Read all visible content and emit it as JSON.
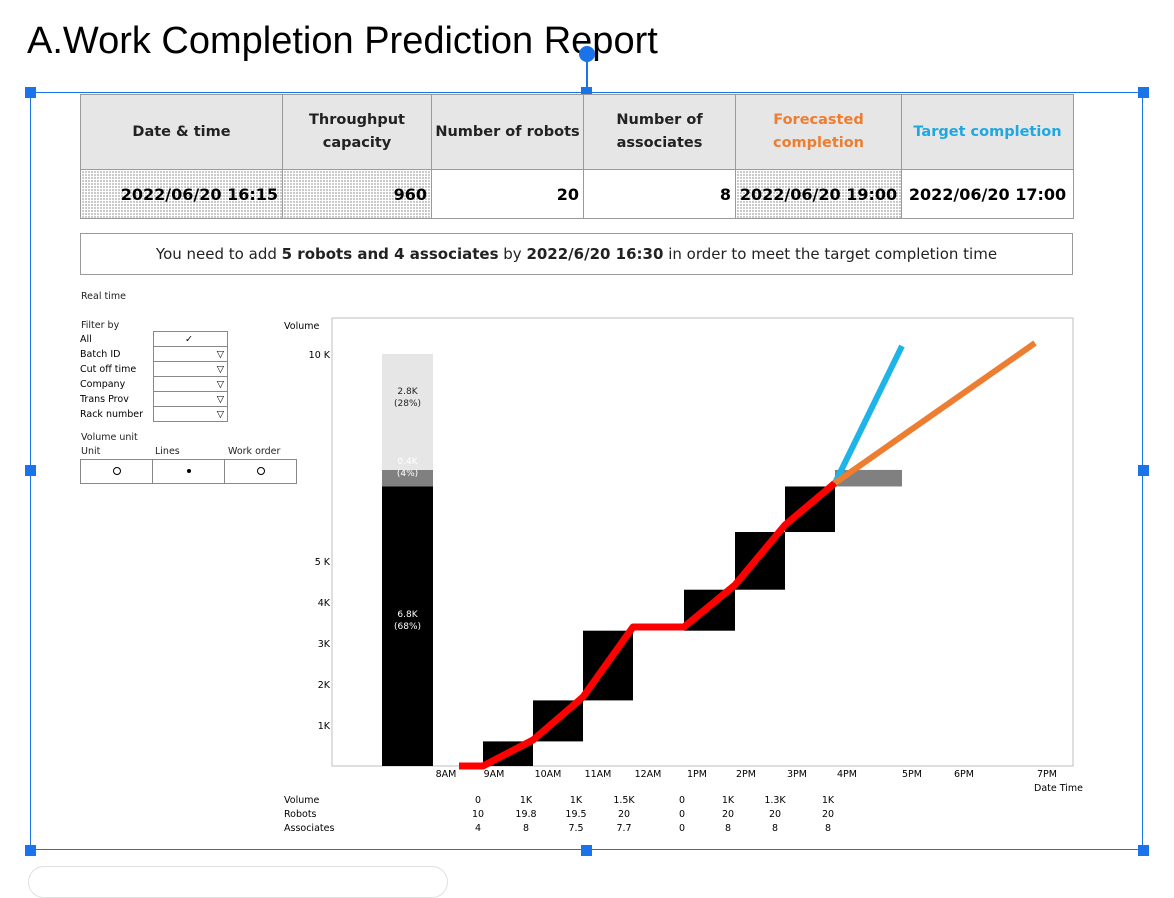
{
  "page": {
    "title": "A.Work Completion Prediction Report"
  },
  "header": {
    "columns": [
      "Date & time",
      "Throughput capacity",
      "Number of robots",
      "Number of associates",
      "Forecasted completion",
      "Target completion"
    ],
    "values": [
      "2022/06/20 16:15",
      "960",
      "20",
      "8",
      "2022/06/20 19:00",
      "2022/06/20 17:00"
    ],
    "colors": {
      "forecasted": "#ed7d31",
      "target": "#1fa8e0"
    }
  },
  "message": {
    "pre": "You need to add ",
    "bold1": "5 robots and 4 associates",
    "mid": " by ",
    "bold2": "2022/6/20 16:30",
    "post": " in order to meet the target completion time"
  },
  "panel": {
    "realtime": "Real time",
    "filter_by": "Filter by",
    "filters": [
      {
        "label": "All",
        "value": "✓"
      },
      {
        "label": "Batch ID",
        "value": "▽"
      },
      {
        "label": "Cut off time",
        "value": "▽"
      },
      {
        "label": "Company",
        "value": "▽"
      },
      {
        "label": "Trans Prov",
        "value": "▽"
      },
      {
        "label": "Rack number",
        "value": "▽"
      }
    ],
    "volume_unit": "Volume unit",
    "units": [
      "Unit",
      "Lines",
      "Work order"
    ],
    "selected_unit": "Lines"
  },
  "chart_data": {
    "type": "bar",
    "ylabel": "Volume",
    "xlabel": "Date Time",
    "y_ticks": [
      "1K",
      "2K",
      "3K",
      "4K",
      "5 K",
      "10 K"
    ],
    "x_ticks": [
      "8AM",
      "9AM",
      "10AM",
      "11AM",
      "12AM",
      "1PM",
      "2PM",
      "3PM",
      "4PM",
      "5PM",
      "6PM",
      "7PM"
    ],
    "stack": [
      {
        "label": "6.8K",
        "pct": "(68%)",
        "value": 6800,
        "color": "#000000"
      },
      {
        "label": "0.4K",
        "pct": "(4%)",
        "value": 400,
        "color": "#808080"
      },
      {
        "label": "2.8K",
        "pct": "(28%)",
        "value": 2800,
        "color": "#e6e6e6"
      }
    ],
    "steps": [
      {
        "from": "9AM",
        "to": "10AM",
        "low": 0,
        "high": 600
      },
      {
        "from": "10AM",
        "to": "11AM",
        "low": 600,
        "high": 1600
      },
      {
        "from": "11AM",
        "to": "12PM",
        "low": 1600,
        "high": 3300
      },
      {
        "from": "1PM",
        "to": "2PM",
        "low": 3300,
        "high": 4300
      },
      {
        "from": "2PM",
        "to": "3PM",
        "low": 4300,
        "high": 5700
      },
      {
        "from": "3PM",
        "to": "4PM",
        "low": 5700,
        "high": 6800
      },
      {
        "from": "4PM",
        "to": "5PM",
        "low": 6800,
        "high": 7200
      }
    ],
    "actual_line": {
      "color": "#ff0000"
    },
    "target_line": {
      "color": "#1fb4e8"
    },
    "forecast_line": {
      "color": "#ed7d31"
    },
    "table": {
      "rows": [
        "Volume",
        "Robots",
        "Associates"
      ],
      "volume": [
        "0",
        "1K",
        "1K",
        "1.5K",
        "0",
        "1K",
        "1.3K",
        "1K"
      ],
      "robots": [
        "10",
        "19.8",
        "19.5",
        "20",
        "0",
        "20",
        "20",
        "20"
      ],
      "associates": [
        "4",
        "8",
        "7.5",
        "7.7",
        "0",
        "8",
        "8",
        "8"
      ]
    }
  }
}
